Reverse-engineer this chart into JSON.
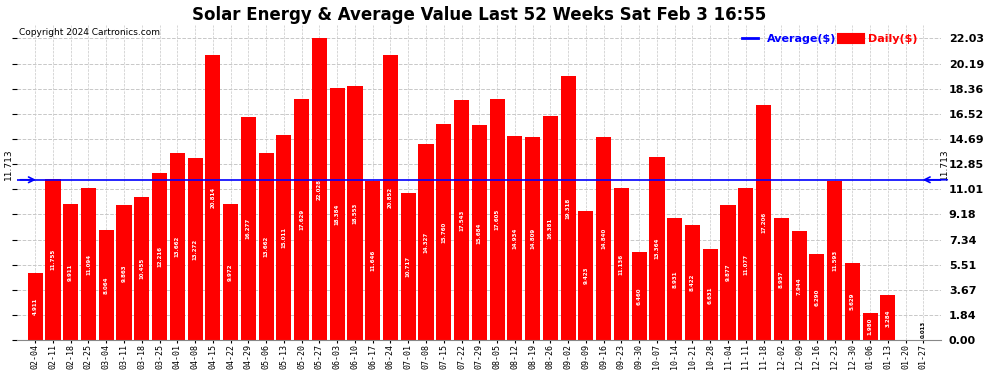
{
  "title": "Solar Energy & Average Value Last 52 Weeks Sat Feb 3 16:55",
  "copyright": "Copyright 2024 Cartronics.com",
  "average_label": "Average($)",
  "daily_label": "Daily($)",
  "average_value": 11.713,
  "categories": [
    "02-04",
    "02-11",
    "02-18",
    "02-25",
    "03-04",
    "03-11",
    "03-18",
    "03-25",
    "04-01",
    "04-08",
    "04-15",
    "04-22",
    "04-29",
    "05-06",
    "05-13",
    "05-20",
    "05-27",
    "06-03",
    "06-10",
    "06-17",
    "06-24",
    "07-01",
    "07-08",
    "07-15",
    "07-22",
    "07-29",
    "08-05",
    "08-12",
    "08-19",
    "08-26",
    "09-02",
    "09-09",
    "09-16",
    "09-23",
    "09-30",
    "10-07",
    "10-14",
    "10-21",
    "10-28",
    "11-04",
    "11-11",
    "11-18",
    "12-02",
    "12-09",
    "12-16",
    "12-23",
    "12-30",
    "01-06",
    "01-13",
    "01-20",
    "01-27"
  ],
  "values": [
    4.911,
    11.755,
    9.911,
    11.094,
    8.064,
    9.863,
    10.455,
    12.216,
    13.662,
    13.272,
    20.814,
    9.972,
    16.277,
    13.662,
    15.011,
    17.629,
    22.028,
    18.384,
    18.553,
    11.646,
    20.852,
    10.717,
    14.327,
    15.76,
    17.543,
    15.684,
    17.605,
    14.934,
    14.809,
    16.381,
    19.318,
    9.423,
    14.84,
    11.136,
    6.46,
    13.364,
    8.931,
    8.422,
    6.631,
    9.877,
    11.077,
    17.206,
    8.957,
    7.944,
    6.29,
    11.593,
    5.629,
    1.98,
    3.284,
    0.0,
    0.013
  ],
  "bar_color": "#ff0000",
  "avg_line_color": "#0000ff",
  "background_color": "#ffffff",
  "grid_color": "#c8c8c8",
  "yticks": [
    0.0,
    1.84,
    3.67,
    5.51,
    7.34,
    9.18,
    11.01,
    12.85,
    14.69,
    16.52,
    18.36,
    20.19,
    22.03
  ],
  "title_fontsize": 12,
  "ylim": [
    0,
    23.0
  ]
}
